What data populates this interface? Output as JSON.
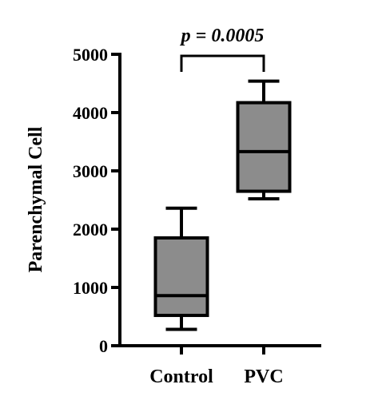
{
  "chart_data": {
    "type": "box",
    "ylabel": "Parenchymal Cell",
    "ylim": [
      0,
      5000
    ],
    "yticks": [
      0,
      1000,
      2000,
      3000,
      4000,
      5000
    ],
    "categories": [
      "Control",
      "PVC"
    ],
    "boxes": [
      {
        "category": "Control",
        "min": 280,
        "q1": 520,
        "median": 860,
        "q3": 1850,
        "max": 2360
      },
      {
        "category": "PVC",
        "min": 2520,
        "q1": 2650,
        "median": 3330,
        "q3": 4170,
        "max": 4540
      }
    ],
    "annotations": [
      {
        "text": "p = 0.0005",
        "between": [
          "Control",
          "PVC"
        ]
      }
    ],
    "box_fill": "#8c8c8c",
    "line_color": "#000000",
    "grid": false
  }
}
